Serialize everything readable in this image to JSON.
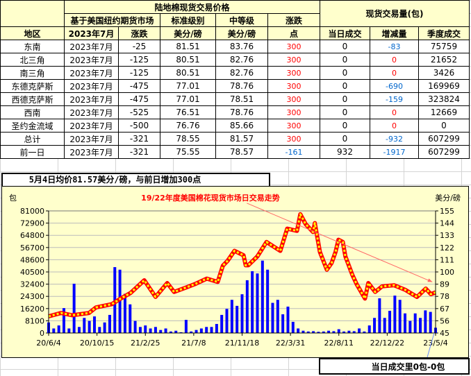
{
  "table": {
    "title_price": "陆地棉现货交易价格",
    "title_volume": "现货交易量(包)",
    "sub_ny": "基于美国纽约期货市场",
    "sub_std": "标准级别",
    "sub_mid": "中等级",
    "sub_chg": "涨跌",
    "col_region": "地区",
    "col_month": "2023年7月",
    "col_change": "涨跌",
    "col_std_unit": "美分/磅",
    "col_mid_unit": "美分/磅",
    "col_points": "点",
    "col_today": "当日成交",
    "col_delta": "增减量",
    "col_quarter": "季度成交",
    "rows": [
      {
        "region": "东南",
        "month": "2023年7月",
        "change": "-25",
        "std": "81.51",
        "mid": "83.76",
        "points": "300",
        "points_color": "red",
        "today": "0",
        "delta": "-83",
        "delta_color": "blue",
        "quarter": "75759"
      },
      {
        "region": "北三角",
        "month": "2023年7月",
        "change": "-125",
        "std": "80.51",
        "mid": "82.76",
        "points": "300",
        "points_color": "red",
        "today": "0",
        "delta": "0",
        "delta_color": "red",
        "quarter": "21652"
      },
      {
        "region": "南三角",
        "month": "2023年7月",
        "change": "-125",
        "std": "80.51",
        "mid": "82.76",
        "points": "300",
        "points_color": "red",
        "today": "0",
        "delta": "0",
        "delta_color": "red",
        "quarter": "3426"
      },
      {
        "region": "东德克萨斯",
        "month": "2023年7月",
        "change": "-475",
        "std": "77.01",
        "mid": "78.76",
        "points": "300",
        "points_color": "red",
        "today": "0",
        "delta": "-690",
        "delta_color": "blue",
        "quarter": "169969"
      },
      {
        "region": "西德克萨斯",
        "month": "2023年7月",
        "change": "-475",
        "std": "77.01",
        "mid": "78.51",
        "points": "300",
        "points_color": "red",
        "today": "0",
        "delta": "-159",
        "delta_color": "blue",
        "quarter": "323824"
      },
      {
        "region": "西南",
        "month": "2023年7月",
        "change": "-525",
        "std": "76.51",
        "mid": "78.76",
        "points": "300",
        "points_color": "red",
        "today": "0",
        "delta": "0",
        "delta_color": "red",
        "quarter": "12669"
      },
      {
        "region": "圣约金流域",
        "month": "2023年7月",
        "change": "-500",
        "std": "76.76",
        "mid": "85.66",
        "points": "300",
        "points_color": "red",
        "today": "0",
        "delta": "0",
        "delta_color": "red",
        "quarter": "0"
      },
      {
        "region": "总计",
        "month": "2023年7月",
        "change": "-321",
        "std": "78.55",
        "mid": "81.57",
        "points": "300",
        "points_color": "red",
        "today": "0",
        "delta": "-932",
        "delta_color": "blue",
        "quarter": "607299"
      },
      {
        "region": "前一日",
        "month": "2023年7月",
        "change": "-321",
        "std": "75.55",
        "mid": "78.57",
        "points": "-161",
        "points_color": "blue",
        "today": "932",
        "delta": "-1917",
        "delta_color": "blue",
        "quarter": "607299"
      }
    ]
  },
  "summary_text": "5月4日均价81.57美分/磅，与前日增加300点",
  "bottom_text": "当日成交里0包-0包",
  "colors": {
    "red": "#ff0000",
    "blue": "#0066cc",
    "header_bg": "#ffffcc",
    "bars": "#0000ff",
    "line": "#ff0000",
    "line_dots": "#ffff00",
    "trend": "#ff6666"
  },
  "chart_data": {
    "type": "bar+line",
    "title": "19/22年度美国棉花现货市场日交易走势",
    "ylabel_left": "包",
    "ylabel_right": "美分/磅",
    "ylim_left": [
      0,
      81000
    ],
    "ylim_right": [
      45,
      155
    ],
    "yticks_left": [
      "81000",
      "72900",
      "64800",
      "56700",
      "48600",
      "40500",
      "32400",
      "24300",
      "16200",
      "8100",
      "0"
    ],
    "yticks_right": [
      "155",
      "144",
      "133",
      "122",
      "111",
      "100",
      "89",
      "78",
      "67",
      "56",
      "45"
    ],
    "xlim": [
      "2020-06-04",
      "2023-05-04"
    ],
    "xticks": [
      {
        "date": "2020-06-04",
        "label": "20/6/4"
      },
      {
        "date": "2020-10-15",
        "label": "20/10/15"
      },
      {
        "date": "2021-02-25",
        "label": "21/2/25"
      },
      {
        "date": "2021-07-08",
        "label": "21/7/8"
      },
      {
        "date": "2021-11-18",
        "label": "21/11/18"
      },
      {
        "date": "2022-03-31",
        "label": "22/3/31"
      },
      {
        "date": "2022-08-11",
        "label": "22/8/11"
      },
      {
        "date": "2022-12-22",
        "label": "22/12/22"
      },
      {
        "date": "2023-05-04",
        "label": "23/5/4"
      }
    ],
    "grid": true,
    "trend_arrow": {
      "from": [
        "2021-12-01",
        162
      ],
      "to": [
        "2023-04-25",
        91
      ]
    },
    "volume_series": {
      "axis": "left",
      "dates": [
        "2020-06-04",
        "2020-06-18",
        "2020-07-02",
        "2020-07-16",
        "2020-07-30",
        "2020-08-13",
        "2020-08-27",
        "2020-09-10",
        "2020-09-24",
        "2020-10-08",
        "2020-10-22",
        "2020-11-05",
        "2020-11-19",
        "2020-12-03",
        "2020-12-17",
        "2020-12-31",
        "2021-01-14",
        "2021-01-28",
        "2021-02-11",
        "2021-02-25",
        "2021-03-11",
        "2021-03-25",
        "2021-04-08",
        "2021-04-22",
        "2021-05-06",
        "2021-05-20",
        "2021-06-03",
        "2021-06-17",
        "2021-07-01",
        "2021-07-15",
        "2021-07-29",
        "2021-08-12",
        "2021-08-26",
        "2021-09-09",
        "2021-09-23",
        "2021-10-07",
        "2021-10-21",
        "2021-11-04",
        "2021-11-18",
        "2021-12-02",
        "2021-12-16",
        "2021-12-30",
        "2022-01-13",
        "2022-01-27",
        "2022-02-10",
        "2022-02-24",
        "2022-03-10",
        "2022-03-24",
        "2022-04-07",
        "2022-04-21",
        "2022-05-05",
        "2022-05-19",
        "2022-06-02",
        "2022-06-16",
        "2022-06-30",
        "2022-07-14",
        "2022-07-28",
        "2022-08-11",
        "2022-08-25",
        "2022-09-08",
        "2022-09-22",
        "2022-10-06",
        "2022-10-20",
        "2022-11-03",
        "2022-11-17",
        "2022-12-01",
        "2022-12-15",
        "2022-12-29",
        "2023-01-12",
        "2023-01-26",
        "2023-02-09",
        "2023-02-23",
        "2023-03-09",
        "2023-03-23",
        "2023-04-06",
        "2023-04-20",
        "2023-05-04"
      ],
      "values": [
        7000,
        3000,
        5000,
        16500,
        3000,
        32700,
        4000,
        10000,
        8000,
        11000,
        4000,
        7000,
        12000,
        43700,
        42000,
        26000,
        19000,
        8000,
        4000,
        5000,
        3000,
        4000,
        2000,
        3000,
        1000,
        1500,
        500,
        8700,
        1000,
        2000,
        3000,
        4000,
        4000,
        6000,
        12000,
        16000,
        22000,
        18000,
        25700,
        35000,
        41000,
        39500,
        48000,
        42000,
        20000,
        22000,
        12400,
        17500,
        7400,
        3000,
        1500,
        1000,
        1200,
        800,
        1000,
        1500,
        1200,
        2500,
        1000,
        1500,
        1200,
        3000,
        1000,
        5000,
        10000,
        23000,
        10000,
        14700,
        24800,
        22000,
        13000,
        8000,
        13000,
        10000,
        15000,
        14000,
        3500
      ]
    },
    "price_series": {
      "axis": "right",
      "dates": [
        "2020-06-04",
        "2020-07-08",
        "2020-08-08",
        "2020-09-23",
        "2020-10-12",
        "2020-11-25",
        "2020-12-19",
        "2021-01-15",
        "2021-02-22",
        "2021-03-25",
        "2021-04-26",
        "2021-05-15",
        "2021-06-17",
        "2021-07-11",
        "2021-08-13",
        "2021-09-12",
        "2021-09-26",
        "2021-10-09",
        "2021-10-28",
        "2021-11-22",
        "2021-11-28",
        "2021-12-05",
        "2021-12-30",
        "2022-01-24",
        "2022-03-03",
        "2022-03-22",
        "2022-04-18",
        "2022-04-27",
        "2022-05-12",
        "2022-06-01",
        "2022-06-06",
        "2022-06-20",
        "2022-07-09",
        "2022-07-22",
        "2022-08-02",
        "2022-08-10",
        "2022-08-22",
        "2022-08-29",
        "2022-09-17",
        "2022-09-29",
        "2022-10-22",
        "2022-10-31",
        "2022-11-19",
        "2022-12-08",
        "2023-01-10",
        "2023-02-09",
        "2023-03-14",
        "2023-04-07",
        "2023-04-21",
        "2023-05-04"
      ],
      "values": [
        60,
        63,
        61,
        63,
        68,
        71,
        76,
        81,
        92.5,
        77.5,
        90,
        82,
        86,
        89,
        94,
        91,
        105.6,
        110,
        119,
        115,
        106,
        106,
        114,
        127,
        119,
        139,
        137,
        152,
        143,
        136,
        144,
        118,
        102,
        108,
        118,
        129,
        127,
        114,
        97.5,
        89,
        76,
        90,
        82,
        87,
        88,
        84,
        77.5,
        85,
        80,
        81.57
      ]
    }
  }
}
